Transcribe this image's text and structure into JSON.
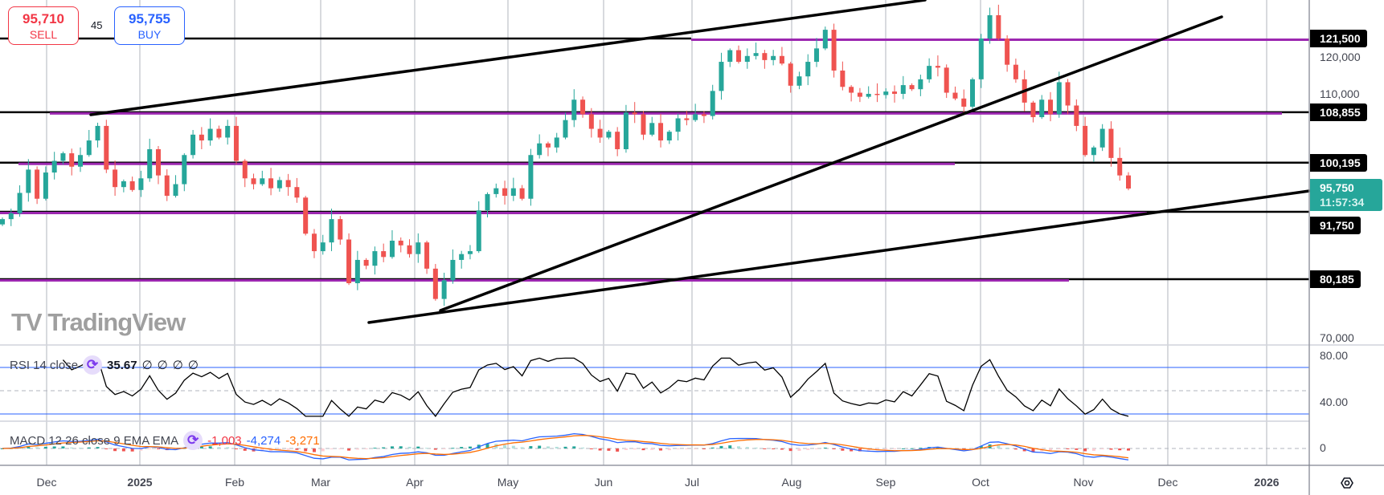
{
  "trade": {
    "sell_price": "95,710",
    "sell_label": "SELL",
    "spread": "45",
    "buy_price": "95,755",
    "buy_label": "BUY"
  },
  "colors": {
    "up": "#26a69a",
    "down": "#ef5350",
    "level": "#9c27b0",
    "rsi_band": "#2962ff",
    "macd": "#2962ff",
    "signal": "#ff6d00"
  },
  "price_axis": {
    "levels": [
      {
        "price": 121500,
        "label": "121,500"
      },
      {
        "price": 108855,
        "label": "108,855"
      },
      {
        "price": 100195,
        "label": "100,195"
      },
      {
        "price": 91750,
        "label": "91,750"
      },
      {
        "price": 80185,
        "label": "80,185"
      }
    ],
    "ticks": [
      "120,000",
      "110,000",
      "70,000"
    ],
    "current_price": "95,750",
    "countdown": "11:57:34"
  },
  "rsi": {
    "name": "RSI 14 close",
    "value": "35.67",
    "extras": [
      "∅",
      "∅",
      "∅",
      "∅"
    ],
    "axis": [
      "80.00",
      "40.00"
    ]
  },
  "macd": {
    "name": "MACD 12 26 close 9 EMA EMA",
    "histogram": "-1,003",
    "macd": "-4,274",
    "signal": "-3,271",
    "axis": [
      "0"
    ]
  },
  "time_axis": [
    "Dec",
    "2025",
    "Feb",
    "Mar",
    "Apr",
    "May",
    "Jun",
    "Jul",
    "Aug",
    "Sep",
    "Oct",
    "Nov",
    "Dec",
    "2026"
  ],
  "watermark": "TV TradingView",
  "icons": {
    "indicator": "cycle-icon",
    "settings": "settings-hex-icon"
  },
  "closes": [
    90500,
    91500,
    95000,
    99000,
    94000,
    98500,
    100500,
    101800,
    99500,
    101500,
    104000,
    106500,
    99000,
    96000,
    97000,
    95500,
    97500,
    102500,
    98000,
    94500,
    96500,
    101500,
    105000,
    104000,
    106000,
    104500,
    106500,
    100500,
    97500,
    96500,
    97500,
    95800,
    97200,
    96000,
    94200,
    88000,
    85000,
    86500,
    90500,
    87000,
    79500,
    83500,
    82500,
    85000,
    84000,
    86800,
    86000,
    84500,
    86500,
    82000,
    76800,
    80000,
    83500,
    84500,
    85000,
    92000,
    94800,
    95800,
    94500,
    95800,
    94000,
    101500,
    103500,
    102800,
    104500,
    107500,
    111000,
    108500,
    106000,
    104500,
    105500,
    102500,
    108800,
    108500,
    105000,
    107000,
    104000,
    105500,
    107800,
    107500,
    108500,
    108200,
    112500,
    117500,
    119500,
    117500,
    118500,
    119000,
    117800,
    118500,
    117200,
    113400,
    115000,
    117500,
    119800,
    123000,
    116000,
    113200,
    112200,
    111500,
    112000,
    111800,
    112400,
    112000,
    113500,
    112800,
    114500,
    116800,
    116500,
    112200,
    111200,
    109800,
    114500,
    121500,
    125500,
    121500,
    117000,
    114500,
    110500,
    108000,
    111000,
    108500,
    114000,
    110000,
    106500,
    101500,
    102800,
    106000,
    101000,
    98000,
    95750
  ]
}
